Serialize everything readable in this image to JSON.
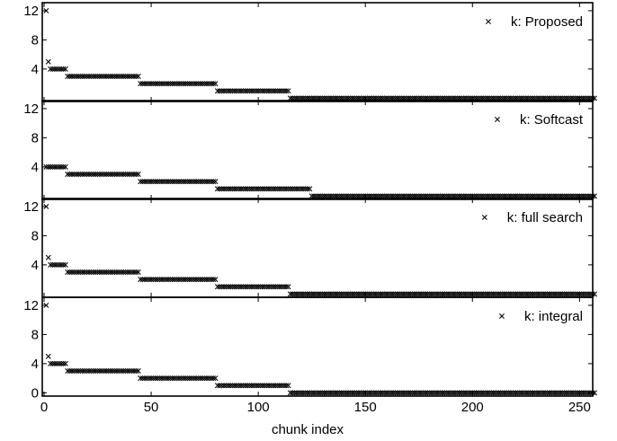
{
  "chart_data": {
    "type": "scatter",
    "xlabel": "chunk index",
    "x_range": [
      0,
      257
    ],
    "xticks": [
      0,
      50,
      100,
      150,
      200,
      250
    ],
    "marker": "x",
    "marker_color": "#000000",
    "legend_placement": "top-right",
    "grid": false,
    "panels": [
      {
        "legend": "k: Proposed",
        "ylim": [
          0,
          13
        ],
        "yticks": [
          4,
          8,
          12
        ],
        "points": [
          [
            1,
            12
          ],
          [
            2,
            5
          ]
        ],
        "runs": [
          [
            3,
            10,
            4
          ],
          [
            11,
            44,
            3
          ],
          [
            45,
            80,
            2
          ],
          [
            81,
            114,
            1
          ],
          [
            115,
            257,
            0
          ]
        ]
      },
      {
        "legend": "k: Softcast",
        "ylim": [
          0,
          13
        ],
        "yticks": [
          4,
          8,
          12
        ],
        "points": [],
        "runs": [
          [
            1,
            10,
            4
          ],
          [
            11,
            44,
            3
          ],
          [
            45,
            80,
            2
          ],
          [
            81,
            124,
            1
          ],
          [
            125,
            257,
            0
          ]
        ]
      },
      {
        "legend": "k: full search",
        "ylim": [
          0,
          13
        ],
        "yticks": [
          4,
          8,
          12
        ],
        "points": [
          [
            1,
            12
          ],
          [
            2,
            5
          ]
        ],
        "runs": [
          [
            3,
            10,
            4
          ],
          [
            11,
            44,
            3
          ],
          [
            45,
            80,
            2
          ],
          [
            81,
            114,
            1
          ],
          [
            115,
            257,
            0
          ]
        ]
      },
      {
        "legend": "k: integral",
        "ylim": [
          0,
          13
        ],
        "yticks": [
          0,
          4,
          8,
          12
        ],
        "points": [
          [
            1,
            12
          ],
          [
            2,
            5
          ]
        ],
        "runs": [
          [
            3,
            10,
            4
          ],
          [
            11,
            44,
            3
          ],
          [
            45,
            80,
            2
          ],
          [
            81,
            114,
            1
          ],
          [
            115,
            257,
            0
          ]
        ]
      }
    ]
  }
}
